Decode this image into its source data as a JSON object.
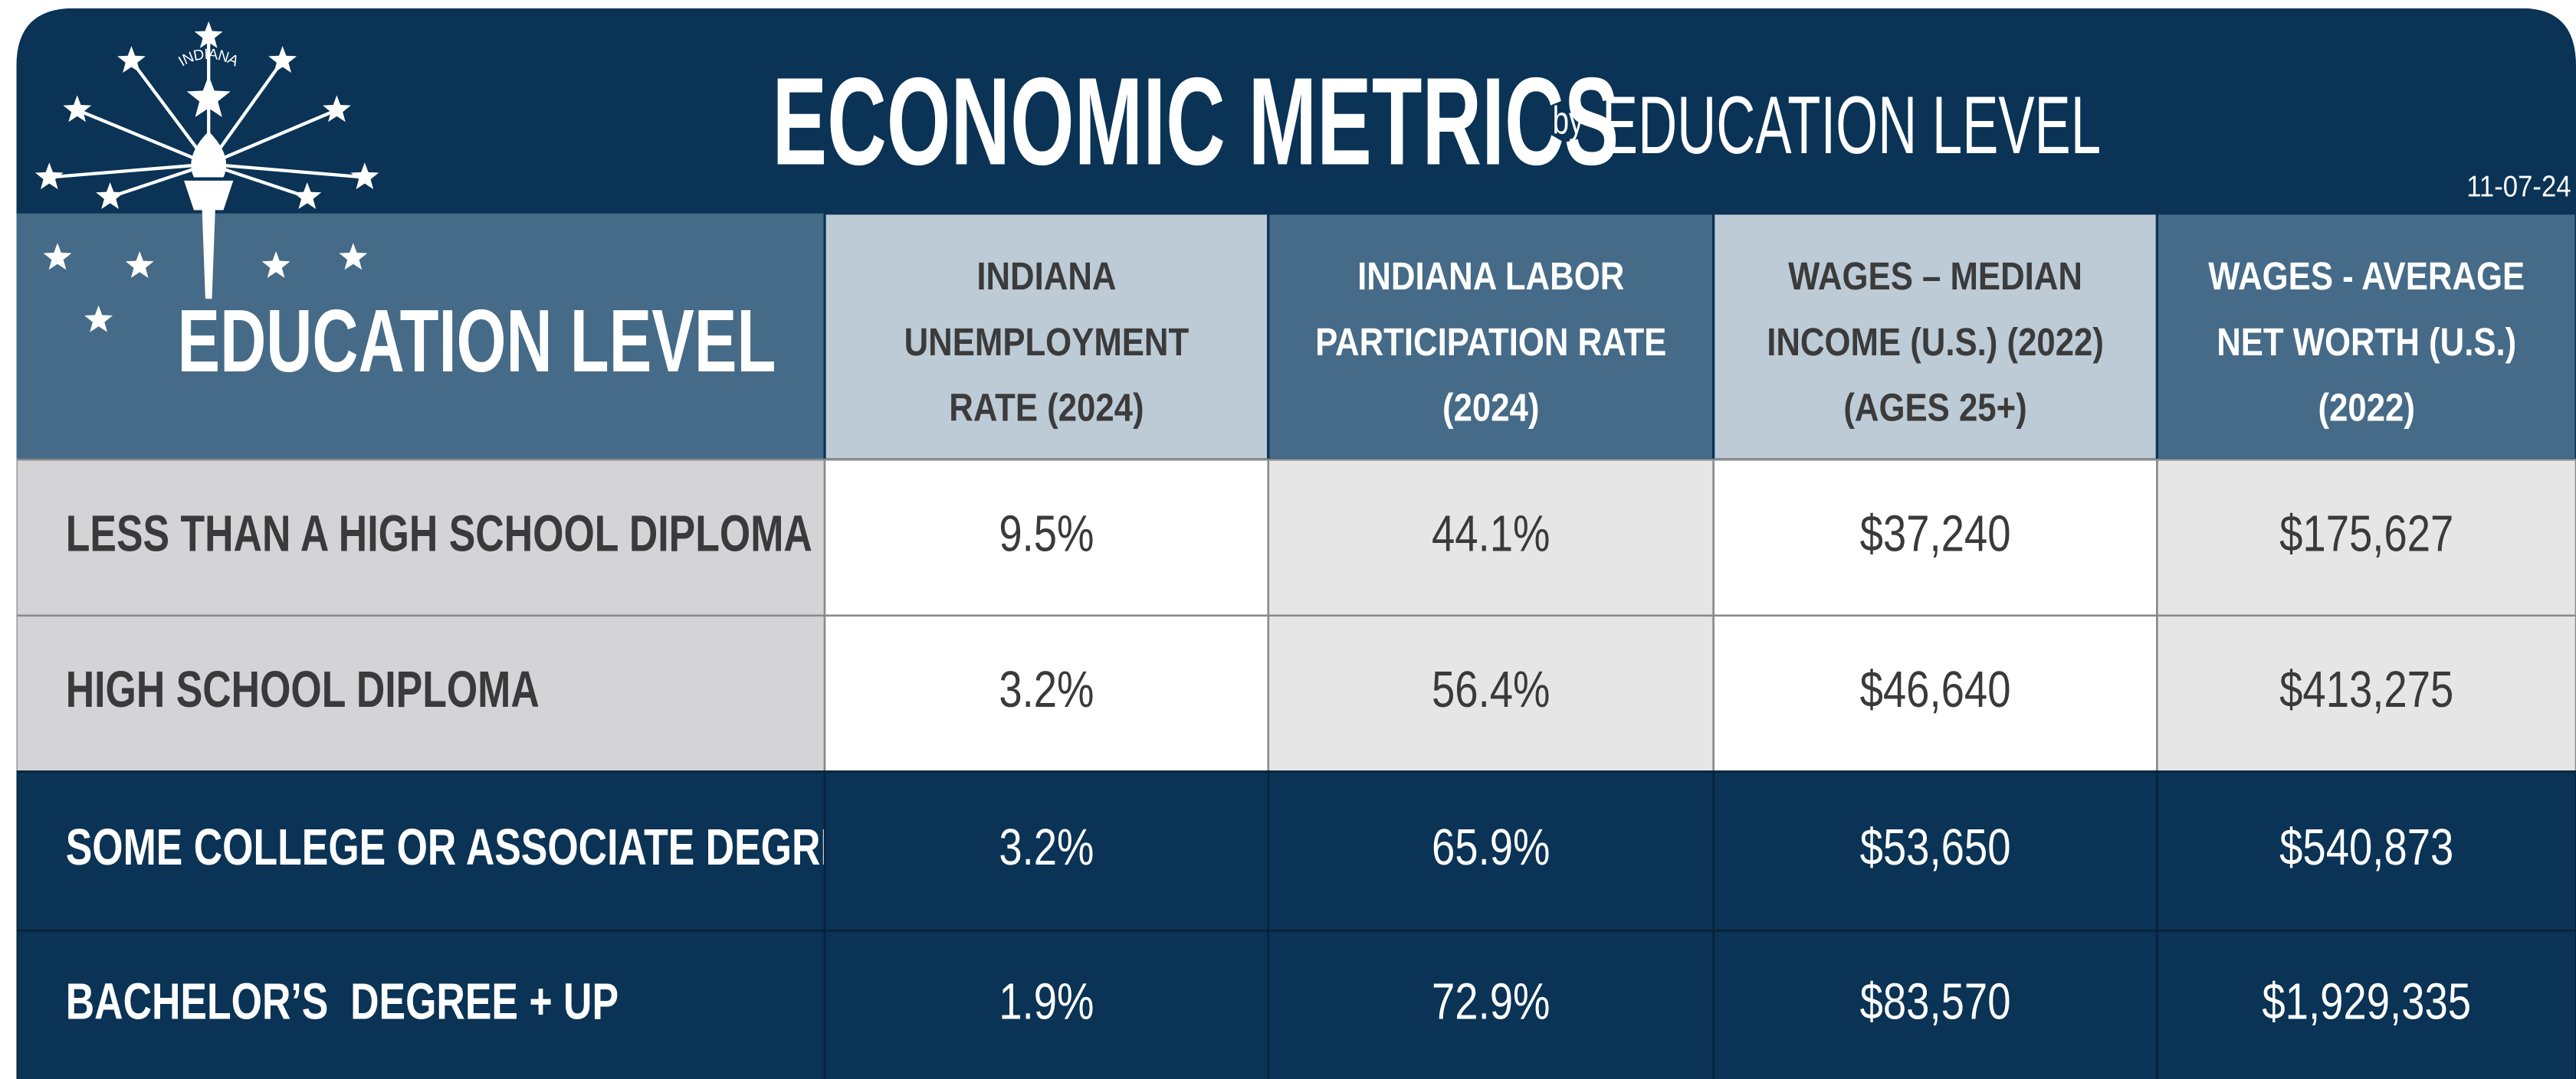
{
  "logo": {
    "text": "INDIANA"
  },
  "header": {
    "title": "ECONOMIC METRICS",
    "connector": "by",
    "subtitle": "EDUCATION LEVEL",
    "date": "11-07-24"
  },
  "table": {
    "corner": "EDUCATION LEVEL",
    "columns": [
      [
        "INDIANA",
        "UNEMPLOYMENT",
        "RATE (2024)"
      ],
      [
        "INDIANA LABOR",
        "PARTICIPATION RATE",
        "(2024)"
      ],
      [
        "WAGES – MEDIAN",
        "INCOME (U.S.) (2022)",
        "(AGES 25+)"
      ],
      [
        "WAGES - AVERAGE",
        "NET WORTH (U.S.)",
        "(2022)"
      ]
    ],
    "rows": [
      [
        "LESS THAN A HIGH SCHOOL DIPLOMA",
        "9.5%",
        "44.1%",
        "$37,240",
        "$175,627"
      ],
      [
        "HIGH SCHOOL DIPLOMA",
        "3.2%",
        "56.4%",
        "$46,640",
        "$413,275"
      ],
      [
        "SOME COLLEGE OR ASSOCIATE DEGREE",
        "3.2%",
        "65.9%",
        "$53,650",
        "$540,873"
      ],
      [
        "BACHELOR’S  DEGREE + UP",
        "1.9%",
        "72.9%",
        "$83,570",
        "$1,929,335"
      ]
    ]
  }
}
